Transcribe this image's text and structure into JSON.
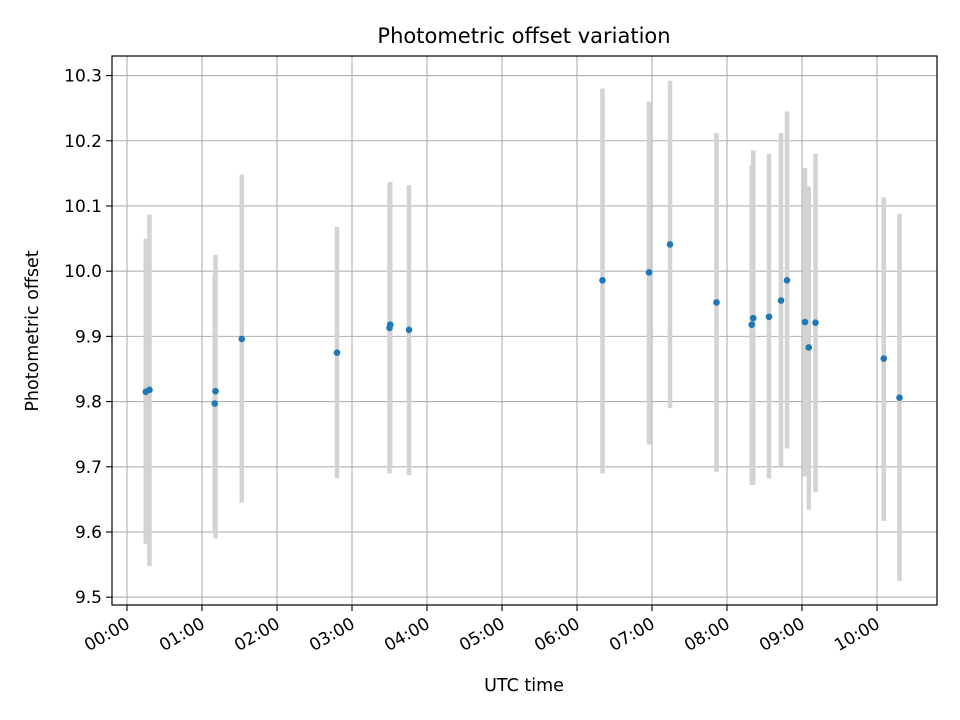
{
  "chart_data": {
    "type": "scatter",
    "title": "Photometric offset variation",
    "xlabel": "UTC time",
    "ylabel": "Photometric offset",
    "x_unit": "hours UTC",
    "xlim": [
      -0.2,
      10.8
    ],
    "ylim": [
      9.488,
      10.33
    ],
    "x_ticks": [
      {
        "value": 0,
        "label": "00:00"
      },
      {
        "value": 1,
        "label": "01:00"
      },
      {
        "value": 2,
        "label": "02:00"
      },
      {
        "value": 3,
        "label": "03:00"
      },
      {
        "value": 4,
        "label": "04:00"
      },
      {
        "value": 5,
        "label": "05:00"
      },
      {
        "value": 6,
        "label": "06:00"
      },
      {
        "value": 7,
        "label": "07:00"
      },
      {
        "value": 8,
        "label": "08:00"
      },
      {
        "value": 9,
        "label": "09:00"
      },
      {
        "value": 10,
        "label": "10:00"
      }
    ],
    "y_ticks": [
      {
        "value": 9.5,
        "label": "9.5"
      },
      {
        "value": 9.6,
        "label": "9.6"
      },
      {
        "value": 9.7,
        "label": "9.7"
      },
      {
        "value": 9.8,
        "label": "9.8"
      },
      {
        "value": 9.9,
        "label": "9.9"
      },
      {
        "value": 10.0,
        "label": "10.0"
      },
      {
        "value": 10.1,
        "label": "10.1"
      },
      {
        "value": 10.2,
        "label": "10.2"
      },
      {
        "value": 10.3,
        "label": "10.3"
      }
    ],
    "grid": true,
    "colors": {
      "point": "#1f77b4",
      "errorbar": "#d3d3d3",
      "grid": "#b0b0b0"
    },
    "points": [
      {
        "x": 0.25,
        "y": 9.815,
        "ylo": 9.582,
        "yhi": 10.05
      },
      {
        "x": 0.3,
        "y": 9.818,
        "ylo": 9.548,
        "yhi": 10.087
      },
      {
        "x": 1.17,
        "y": 9.797,
        "ylo": 9.6,
        "yhi": 9.995
      },
      {
        "x": 1.18,
        "y": 9.816,
        "ylo": 9.59,
        "yhi": 10.025
      },
      {
        "x": 1.53,
        "y": 9.896,
        "ylo": 9.645,
        "yhi": 10.148
      },
      {
        "x": 2.8,
        "y": 9.875,
        "ylo": 9.683,
        "yhi": 10.068
      },
      {
        "x": 3.5,
        "y": 9.913,
        "ylo": 9.69,
        "yhi": 10.135
      },
      {
        "x": 3.51,
        "y": 9.918,
        "ylo": 9.7,
        "yhi": 10.137
      },
      {
        "x": 3.76,
        "y": 9.91,
        "ylo": 9.687,
        "yhi": 10.132
      },
      {
        "x": 6.34,
        "y": 9.986,
        "ylo": 9.69,
        "yhi": 10.28
      },
      {
        "x": 6.96,
        "y": 9.998,
        "ylo": 9.734,
        "yhi": 10.26
      },
      {
        "x": 7.24,
        "y": 10.041,
        "ylo": 9.79,
        "yhi": 10.292
      },
      {
        "x": 7.86,
        "y": 9.952,
        "ylo": 9.692,
        "yhi": 10.212
      },
      {
        "x": 8.33,
        "y": 9.918,
        "ylo": 9.672,
        "yhi": 10.163
      },
      {
        "x": 8.35,
        "y": 9.928,
        "ylo": 9.672,
        "yhi": 10.185
      },
      {
        "x": 8.56,
        "y": 9.93,
        "ylo": 9.682,
        "yhi": 10.18
      },
      {
        "x": 8.72,
        "y": 9.955,
        "ylo": 9.7,
        "yhi": 10.212
      },
      {
        "x": 8.8,
        "y": 9.986,
        "ylo": 9.728,
        "yhi": 10.245
      },
      {
        "x": 9.04,
        "y": 9.922,
        "ylo": 9.685,
        "yhi": 10.158
      },
      {
        "x": 9.09,
        "y": 9.883,
        "ylo": 9.634,
        "yhi": 10.13
      },
      {
        "x": 9.18,
        "y": 9.921,
        "ylo": 9.661,
        "yhi": 10.18
      },
      {
        "x": 10.09,
        "y": 9.866,
        "ylo": 9.617,
        "yhi": 10.113
      },
      {
        "x": 10.3,
        "y": 9.806,
        "ylo": 9.525,
        "yhi": 10.088
      }
    ]
  }
}
